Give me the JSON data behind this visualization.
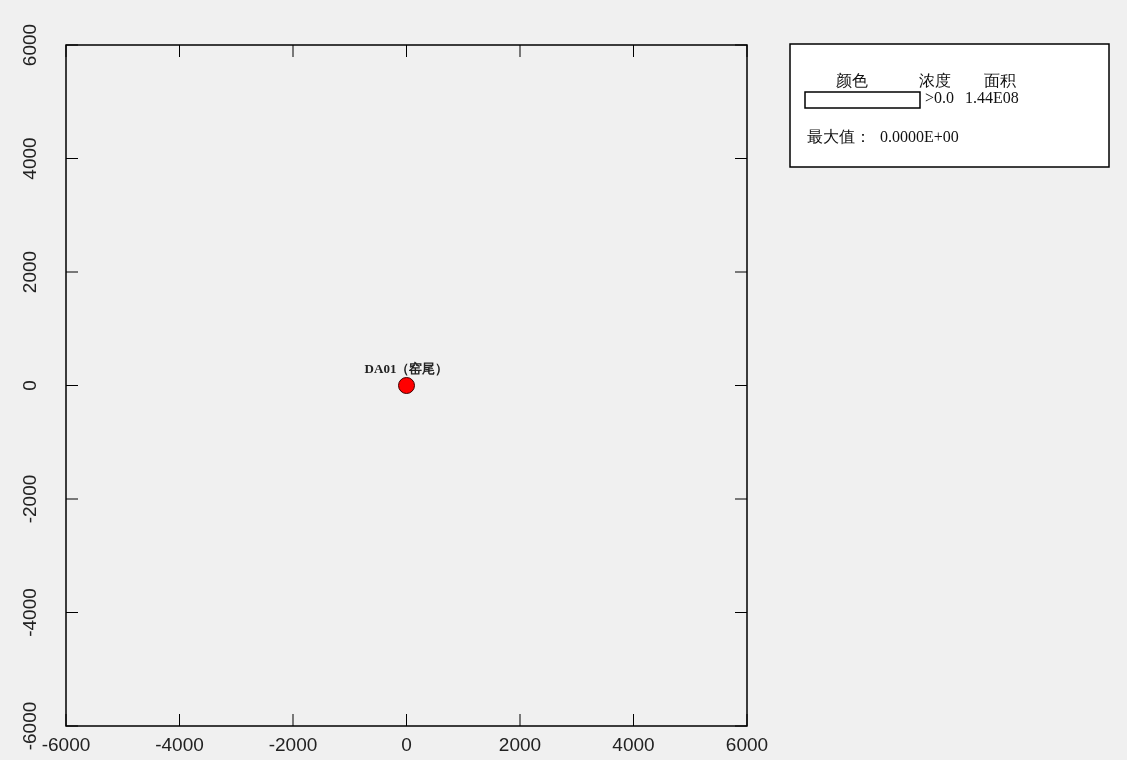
{
  "chart_data": {
    "type": "scatter",
    "x": [
      0
    ],
    "series": [
      {
        "name": "DA01（窑尾）",
        "color": "#ff0000",
        "values": [
          0
        ]
      }
    ],
    "marker": "circle",
    "xlim": [
      -6000,
      6000
    ],
    "xticks": [
      -6000,
      -4000,
      -2000,
      0,
      2000,
      4000,
      6000
    ],
    "ylim": [
      -6000,
      6000
    ],
    "yticks": [
      -6000,
      -4000,
      -2000,
      0,
      2000,
      4000,
      6000
    ],
    "annotations": [
      "颜色",
      "浓度",
      "面积",
      ">0.0",
      "1.44E08",
      "最大值：",
      "0.0000E+00"
    ]
  }
}
